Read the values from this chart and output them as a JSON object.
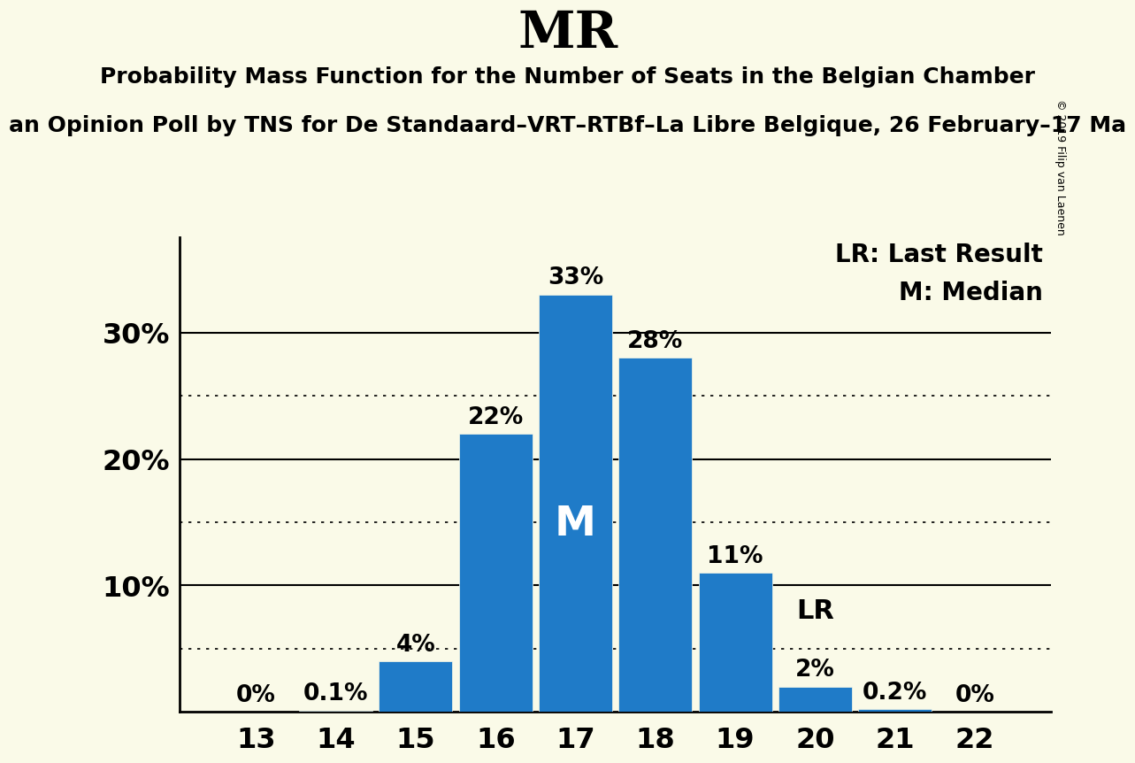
{
  "title": "MR",
  "subtitle": "Probability Mass Function for the Number of Seats in the Belgian Chamber",
  "subsubtitle": "an Opinion Poll by TNS for De Standaard–VRT–RTBf–La Libre Belgique, 26 February–17 Ma",
  "copyright": "© 2019 Filip van Laenen",
  "categories": [
    13,
    14,
    15,
    16,
    17,
    18,
    19,
    20,
    21,
    22
  ],
  "values": [
    0.0,
    0.001,
    0.04,
    0.22,
    0.33,
    0.28,
    0.11,
    0.02,
    0.002,
    0.0
  ],
  "value_labels": [
    "0%",
    "0.1%",
    "4%",
    "22%",
    "33%",
    "28%",
    "11%",
    "2%",
    "0.2%",
    "0%"
  ],
  "bar_color": "#1F7BC8",
  "background_color": "#FAFAE8",
  "median_bar_index": 4,
  "median_label": "M",
  "lr_bar_index": 7,
  "lr_label": "LR",
  "yticks": [
    0.0,
    0.1,
    0.2,
    0.3
  ],
  "ytick_labels": [
    "",
    "10%",
    "20%",
    "30%"
  ],
  "dotted_lines": [
    0.05,
    0.15,
    0.25
  ],
  "ylim": [
    0,
    0.375
  ],
  "legend_lr": "LR: Last Result",
  "legend_m": "M: Median"
}
